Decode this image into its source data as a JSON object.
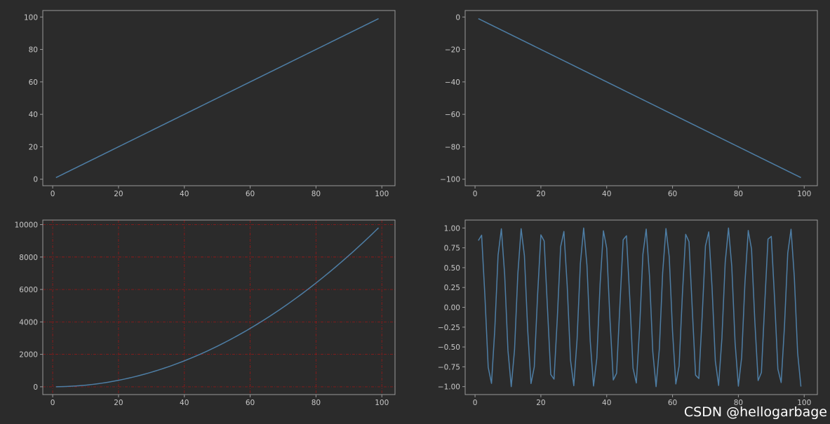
{
  "watermark": "CSDN @hellogarbage",
  "colors": {
    "background": "#2b2b2b",
    "line": "#4e7ea5",
    "grid": "#8b1a1a",
    "frame": "#9a9a9a",
    "tick_text": "#c8c8c8"
  },
  "chart_data": [
    {
      "type": "line",
      "series": [
        {
          "formula": "y = x",
          "x_start": 1,
          "x_end": 99,
          "x_step": 1
        }
      ],
      "xlim": [
        -3,
        104
      ],
      "ylim": [
        -4,
        104
      ],
      "xticks": [
        0,
        20,
        40,
        60,
        80,
        100
      ],
      "yticks": [
        0,
        20,
        40,
        60,
        80,
        100
      ],
      "xtick_labels": [
        "0",
        "20",
        "40",
        "60",
        "80",
        "100"
      ],
      "ytick_labels": [
        "0",
        "20",
        "40",
        "60",
        "80",
        "100"
      ],
      "grid": false
    },
    {
      "type": "line",
      "series": [
        {
          "formula": "y = -x",
          "x_start": 1,
          "x_end": 99,
          "x_step": 1
        }
      ],
      "xlim": [
        -3,
        104
      ],
      "ylim": [
        -104,
        4
      ],
      "xticks": [
        0,
        20,
        40,
        60,
        80,
        100
      ],
      "yticks": [
        0,
        -20,
        -40,
        -60,
        -80,
        -100
      ],
      "xtick_labels": [
        "0",
        "20",
        "40",
        "60",
        "80",
        "100"
      ],
      "ytick_labels": [
        "0",
        "−20",
        "−40",
        "−60",
        "−80",
        "−100"
      ],
      "grid": false
    },
    {
      "type": "line",
      "series": [
        {
          "formula": "y = x^2",
          "x_start": 1,
          "x_end": 99,
          "x_step": 1
        }
      ],
      "xlim": [
        -3,
        104
      ],
      "ylim": [
        -480,
        10280
      ],
      "xticks": [
        0,
        20,
        40,
        60,
        80,
        100
      ],
      "yticks": [
        0,
        2000,
        4000,
        6000,
        8000,
        10000
      ],
      "xtick_labels": [
        "0",
        "20",
        "40",
        "60",
        "80",
        "100"
      ],
      "ytick_labels": [
        "0",
        "2000",
        "4000",
        "6000",
        "8000",
        "10000"
      ],
      "grid": true
    },
    {
      "type": "line",
      "series": [
        {
          "formula": "y = sin(x)",
          "x_start": 1,
          "x_end": 99,
          "x_step": 1
        }
      ],
      "xlim": [
        -3,
        104
      ],
      "ylim": [
        -1.1,
        1.1
      ],
      "xticks": [
        0,
        20,
        40,
        60,
        80,
        100
      ],
      "yticks": [
        1.0,
        0.75,
        0.5,
        0.25,
        0.0,
        -0.25,
        -0.5,
        -0.75,
        -1.0
      ],
      "xtick_labels": [
        "0",
        "20",
        "40",
        "60",
        "80",
        "100"
      ],
      "ytick_labels": [
        "1.00",
        "0.75",
        "0.50",
        "0.25",
        "0.00",
        "−0.25",
        "−0.50",
        "−0.75",
        "−1.00"
      ],
      "grid": false
    }
  ]
}
